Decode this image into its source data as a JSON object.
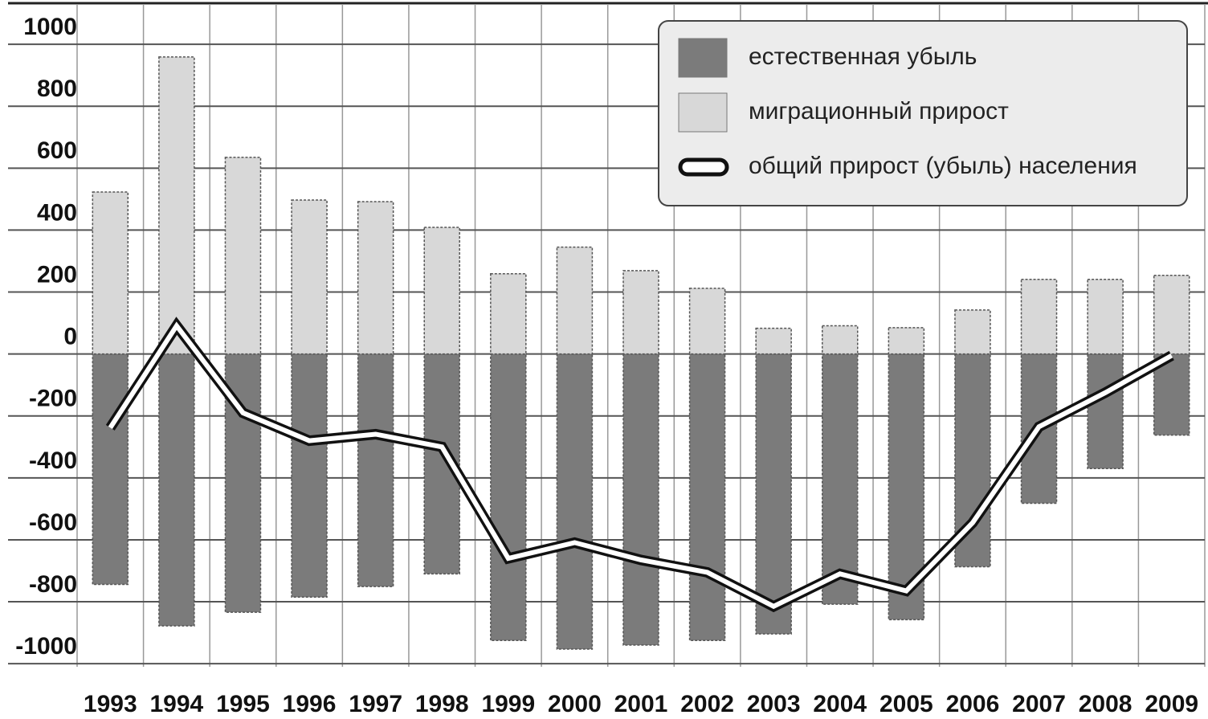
{
  "chart_data": {
    "type": "bar_line",
    "categories": [
      "1993",
      "1994",
      "1995",
      "1996",
      "1997",
      "1998",
      "1999",
      "2000",
      "2001",
      "2002",
      "2003",
      "2004",
      "2005",
      "2006",
      "2007",
      "2008",
      "2009"
    ],
    "series": [
      {
        "name": "естественная убыль",
        "color": "#7b7b7b",
        "kind": "bar",
        "values": [
          -744,
          -878,
          -834,
          -785,
          -751,
          -710,
          -925,
          -953,
          -940,
          -925,
          -904,
          -808,
          -858,
          -687,
          -482,
          -370,
          -262
        ]
      },
      {
        "name": "миграционный прирост",
        "color": "#d8d8d8",
        "kind": "bar",
        "values": [
          523,
          959,
          635,
          497,
          492,
          409,
          259,
          345,
          269,
          212,
          83,
          91,
          85,
          142,
          241,
          241,
          254
        ]
      },
      {
        "name": "общий прирост (убыль) населения",
        "color": "#ffffff",
        "kind": "line",
        "values": [
          -238,
          91,
          -190,
          -280,
          -259,
          -300,
          -660,
          -609,
          -665,
          -705,
          -815,
          -710,
          -765,
          -545,
          -235,
          -125,
          -5
        ]
      }
    ],
    "ylim": [
      -1010,
      1130
    ],
    "yticks": [
      1000,
      800,
      600,
      400,
      200,
      0,
      -200,
      -400,
      -600,
      -800,
      -1000
    ],
    "grid": true,
    "legend": "upper right"
  }
}
